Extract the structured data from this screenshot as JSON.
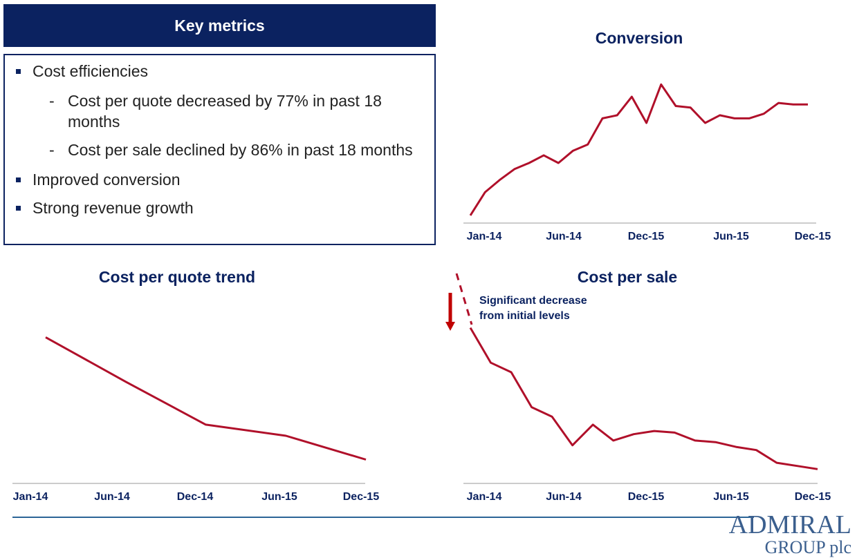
{
  "key_metrics": {
    "title": "Key metrics",
    "items": [
      {
        "text": "Cost efficiencies",
        "subitems": [
          "Cost per quote decreased by 77% in past 18 months",
          "Cost per sale declined by 86% in past 18 months"
        ]
      },
      {
        "text": "Improved conversion"
      },
      {
        "text": "Strong revenue growth"
      }
    ]
  },
  "chart_data": [
    {
      "type": "line",
      "title": "Conversion",
      "color": "#b0102a",
      "ylim": [
        0,
        100
      ],
      "categories": [
        "Jan-14",
        null,
        null,
        null,
        null,
        "Jun-14",
        null,
        null,
        null,
        null,
        null,
        "Dec-15",
        null,
        null,
        null,
        null,
        null,
        "Jun-15",
        null,
        null,
        null,
        null,
        null,
        "Dec-15"
      ],
      "values": [
        5,
        20,
        28,
        35,
        39,
        44,
        39,
        47,
        51,
        68,
        70,
        82,
        65,
        90,
        76,
        75,
        65,
        70,
        68,
        68,
        71,
        78,
        77,
        77
      ]
    },
    {
      "type": "line",
      "title": "Cost per quote trend",
      "color": "#b0102a",
      "ylim": [
        0,
        100
      ],
      "categories": [
        "Jan-14",
        "Jun-14",
        "Dec-14",
        "Jun-15",
        "Dec-15"
      ],
      "values": [
        92,
        64,
        37,
        30,
        15
      ]
    },
    {
      "type": "line",
      "title": "Cost per sale",
      "color": "#b0102a",
      "ylim": [
        0,
        100
      ],
      "categories": [
        "Jan-14",
        null,
        null,
        null,
        "Jun-14",
        null,
        null,
        null,
        "Dec-15",
        null,
        null,
        null,
        null,
        "Jun-15",
        null,
        null,
        null,
        "Dec-15"
      ],
      "values": [
        98,
        76,
        70,
        48,
        42,
        24,
        37,
        27,
        31,
        33,
        32,
        27,
        26,
        23,
        21,
        13,
        11,
        9
      ],
      "annotation": [
        "Significant decrease",
        "from initial levels"
      ]
    }
  ],
  "logo": {
    "name": "ADMIRAL",
    "sub": "GROUP plc"
  }
}
